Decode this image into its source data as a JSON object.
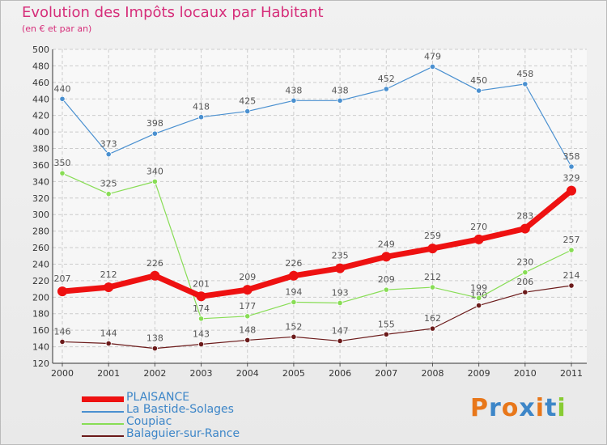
{
  "chart_data": {
    "type": "line",
    "title": "Evolution des Impôts locaux par Habitant",
    "subtitle": "(en € et par an)",
    "x": [
      "2000",
      "2001",
      "2002",
      "2003",
      "2004",
      "2005",
      "2006",
      "2007",
      "2008",
      "2009",
      "2010",
      "2011"
    ],
    "ylim": [
      120,
      500
    ],
    "yticks": [
      120,
      140,
      160,
      180,
      200,
      220,
      240,
      260,
      280,
      300,
      320,
      340,
      360,
      380,
      400,
      420,
      440,
      460,
      480,
      500
    ],
    "grid": true,
    "legend_position": "bottom-left",
    "series": [
      {
        "name": "PLAISANCE",
        "color": "#ee1111",
        "values": [
          207,
          212,
          226,
          201,
          209,
          226,
          235,
          249,
          259,
          270,
          283,
          329
        ]
      },
      {
        "name": "La Bastide-Solages",
        "color": "#4a90d0",
        "values": [
          440,
          373,
          398,
          418,
          425,
          438,
          438,
          452,
          479,
          450,
          458,
          358
        ]
      },
      {
        "name": "Coupiac",
        "color": "#88dd55",
        "values": [
          350,
          325,
          340,
          174,
          177,
          194,
          193,
          209,
          212,
          199,
          230,
          257
        ]
      },
      {
        "name": "Balaguier-sur-Rance",
        "color": "#6b1a1a",
        "values": [
          146,
          144,
          138,
          143,
          148,
          152,
          147,
          155,
          162,
          190,
          206,
          214
        ]
      }
    ]
  },
  "logo": {
    "text": "Proxiti",
    "colors": [
      "#e8771a",
      "#3d86c8",
      "#e8771a",
      "#3d86c8",
      "#e8771a",
      "#3d86c8",
      "#88cc33"
    ]
  }
}
